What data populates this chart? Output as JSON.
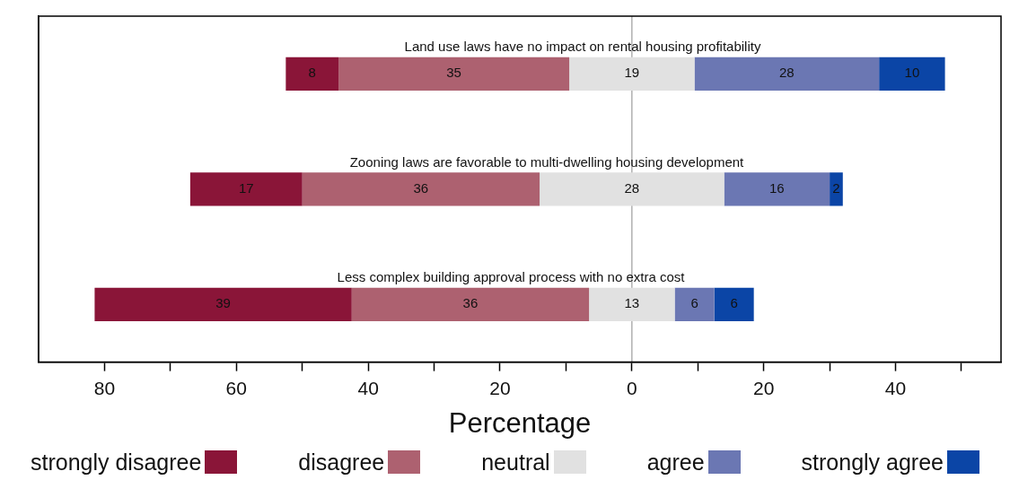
{
  "chart_data": {
    "type": "bar",
    "orientation": "horizontal",
    "xlabel": "Percentage",
    "categories": [
      "Land use laws have no impact on rental housing profitability",
      "Zooning laws are favorable to multi-dwelling housing development",
      "Less complex building approval process with no extra cost"
    ],
    "series": [
      {
        "name": "strongly disagree",
        "color": "#8a1538",
        "values": [
          8,
          17,
          39
        ],
        "base": [
          -52.5,
          -67,
          -81.5
        ]
      },
      {
        "name": "disagree",
        "color": "#ad6170",
        "values": [
          35,
          36,
          36
        ],
        "base": [
          -44.5,
          -50,
          -42.5
        ]
      },
      {
        "name": "neutral",
        "color": "#e1e1e1",
        "values": [
          19,
          28,
          13
        ],
        "base": [
          -9.5,
          -14,
          -6.5
        ]
      },
      {
        "name": "agree",
        "color": "#6b77b3",
        "values": [
          28,
          16,
          6
        ],
        "base": [
          9.5,
          14,
          6.5
        ]
      },
      {
        "name": "strongly agree",
        "color": "#0b45a6",
        "values": [
          10,
          2,
          6
        ],
        "base": [
          37.5,
          30,
          12.5
        ]
      }
    ],
    "xlim": [
      -90,
      56
    ],
    "xticks": [
      {
        "value": -80,
        "label": "80"
      },
      {
        "value": -70,
        "label": null
      },
      {
        "value": -60,
        "label": "60"
      },
      {
        "value": -50,
        "label": null
      },
      {
        "value": -40,
        "label": "40"
      },
      {
        "value": -30,
        "label": null
      },
      {
        "value": -20,
        "label": "20"
      },
      {
        "value": -10,
        "label": null
      },
      0,
      {
        "value": 10,
        "label": null
      },
      20,
      {
        "value": 30,
        "label": null
      },
      40,
      {
        "value": 50,
        "label": null
      }
    ],
    "ref_lines": [
      {
        "axis": "x",
        "value": 0,
        "color": "#b0b0b0"
      }
    ],
    "data_labels": true,
    "legend": "bottom",
    "tick_labels": "x",
    "grid": false
  }
}
